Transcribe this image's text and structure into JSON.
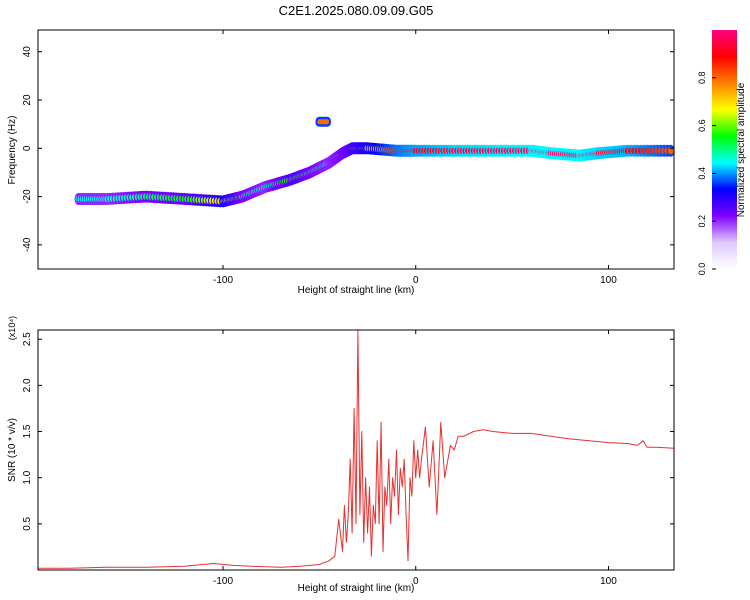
{
  "title": "C2E1.2025.080.09.09.G05",
  "chart_data": [
    {
      "type": "heatmap",
      "xlabel": "Height of straight line (km)",
      "ylabel": "Frequency (Hz)",
      "xlim": [
        -196,
        134
      ],
      "ylim": [
        -50,
        49
      ],
      "xticks": [
        -100,
        0,
        100
      ],
      "xtick_labels": [
        "-100",
        "0",
        "100"
      ],
      "yticks": [
        -40,
        -20,
        0,
        20,
        40
      ],
      "ytick_labels": [
        "-40",
        "-20",
        "0",
        "20",
        "40"
      ],
      "colorbar": {
        "label": "Normalized spectral amplitude",
        "range": [
          0,
          1
        ],
        "ticks": [
          0.0,
          0.2,
          0.4,
          0.6,
          0.8
        ],
        "tick_labels": [
          "0.0",
          "0.2",
          "0.4",
          "0.6",
          "0.8"
        ],
        "colors": [
          "#ffffff",
          "#e0c8ff",
          "#8000ff",
          "#0000ff",
          "#00ffff",
          "#00ff00",
          "#ffff00",
          "#ff8000",
          "#ff0000",
          "#ff0080"
        ]
      },
      "ridge": {
        "x": [
          -175,
          -160,
          -140,
          -120,
          -100,
          -90,
          -78,
          -65,
          -55,
          -45,
          -38,
          -33,
          -25,
          -10,
          0,
          20,
          40,
          60,
          70,
          85,
          95,
          110,
          134
        ],
        "y": [
          -21,
          -21,
          -20,
          -21,
          -22,
          -20,
          -16,
          -13,
          -10,
          -6,
          -2,
          0,
          0,
          -1,
          -1,
          -1,
          -1,
          -1,
          -2,
          -3,
          -2,
          -1,
          -1
        ],
        "amplitude": [
          0.45,
          0.45,
          0.5,
          0.55,
          0.7,
          0.5,
          0.45,
          0.6,
          0.5,
          0.45,
          0.5,
          0.6,
          0.7,
          0.85,
          0.9,
          0.95,
          0.97,
          0.98,
          0.98,
          0.98,
          0.95,
          0.92,
          0.8
        ]
      },
      "branch": {
        "x": [
          -52,
          -44
        ],
        "y": [
          11,
          11
        ],
        "amplitude": 0.8
      }
    },
    {
      "type": "line",
      "xlabel": "Height of straight line (km)",
      "ylabel": "SNR (10 * v/v)",
      "y_multiplier": "(x10⁴)",
      "xlim": [
        -196,
        134
      ],
      "ylim": [
        0,
        2.6
      ],
      "xticks": [
        -100,
        0,
        100
      ],
      "xtick_labels": [
        "-100",
        "0",
        "100"
      ],
      "yticks": [
        0.5,
        1.0,
        1.5,
        2.0,
        2.5
      ],
      "ytick_labels": [
        "0.5",
        "1.0",
        "1.5",
        "2.0",
        "2.5"
      ],
      "color": "#e83030",
      "series": [
        {
          "x": [
            -196,
            -180,
            -160,
            -140,
            -120,
            -105,
            -95,
            -85,
            -70,
            -60,
            -50,
            -45,
            -42,
            -40,
            -38,
            -37,
            -36,
            -35,
            -34,
            -33,
            -32,
            -31,
            -30,
            -29,
            -28,
            -27,
            -26,
            -25,
            -24,
            -23,
            -22,
            -21,
            -20,
            -19,
            -18,
            -17,
            -16,
            -15,
            -14,
            -13,
            -12,
            -11,
            -10,
            -9,
            -8,
            -7,
            -6,
            -5,
            -4,
            -3,
            -2,
            -1,
            0,
            1,
            2,
            3,
            5,
            7,
            9,
            11,
            13,
            15,
            18,
            20,
            22,
            25,
            30,
            35,
            40,
            50,
            60,
            70,
            80,
            90,
            100,
            110,
            115,
            118,
            120,
            125,
            134
          ],
          "y": [
            0.02,
            0.02,
            0.03,
            0.03,
            0.04,
            0.07,
            0.05,
            0.04,
            0.03,
            0.04,
            0.06,
            0.1,
            0.15,
            0.55,
            0.2,
            0.7,
            0.3,
            0.6,
            1.2,
            0.4,
            1.75,
            0.5,
            2.6,
            0.6,
            1.5,
            0.3,
            1.0,
            0.4,
            0.9,
            0.15,
            0.7,
            0.5,
            1.4,
            0.5,
            1.6,
            0.2,
            0.9,
            0.7,
            1.2,
            0.5,
            1.0,
            0.8,
            1.3,
            0.6,
            1.1,
            0.9,
            1.2,
            0.6,
            0.1,
            1.0,
            0.8,
            1.4,
            1.0,
            1.3,
            1.0,
            1.2,
            1.55,
            0.9,
            1.4,
            0.6,
            1.6,
            1.0,
            1.35,
            1.3,
            1.45,
            1.45,
            1.5,
            1.52,
            1.5,
            1.48,
            1.48,
            1.45,
            1.42,
            1.4,
            1.38,
            1.37,
            1.35,
            1.4,
            1.33,
            1.33,
            1.32
          ]
        }
      ]
    }
  ]
}
